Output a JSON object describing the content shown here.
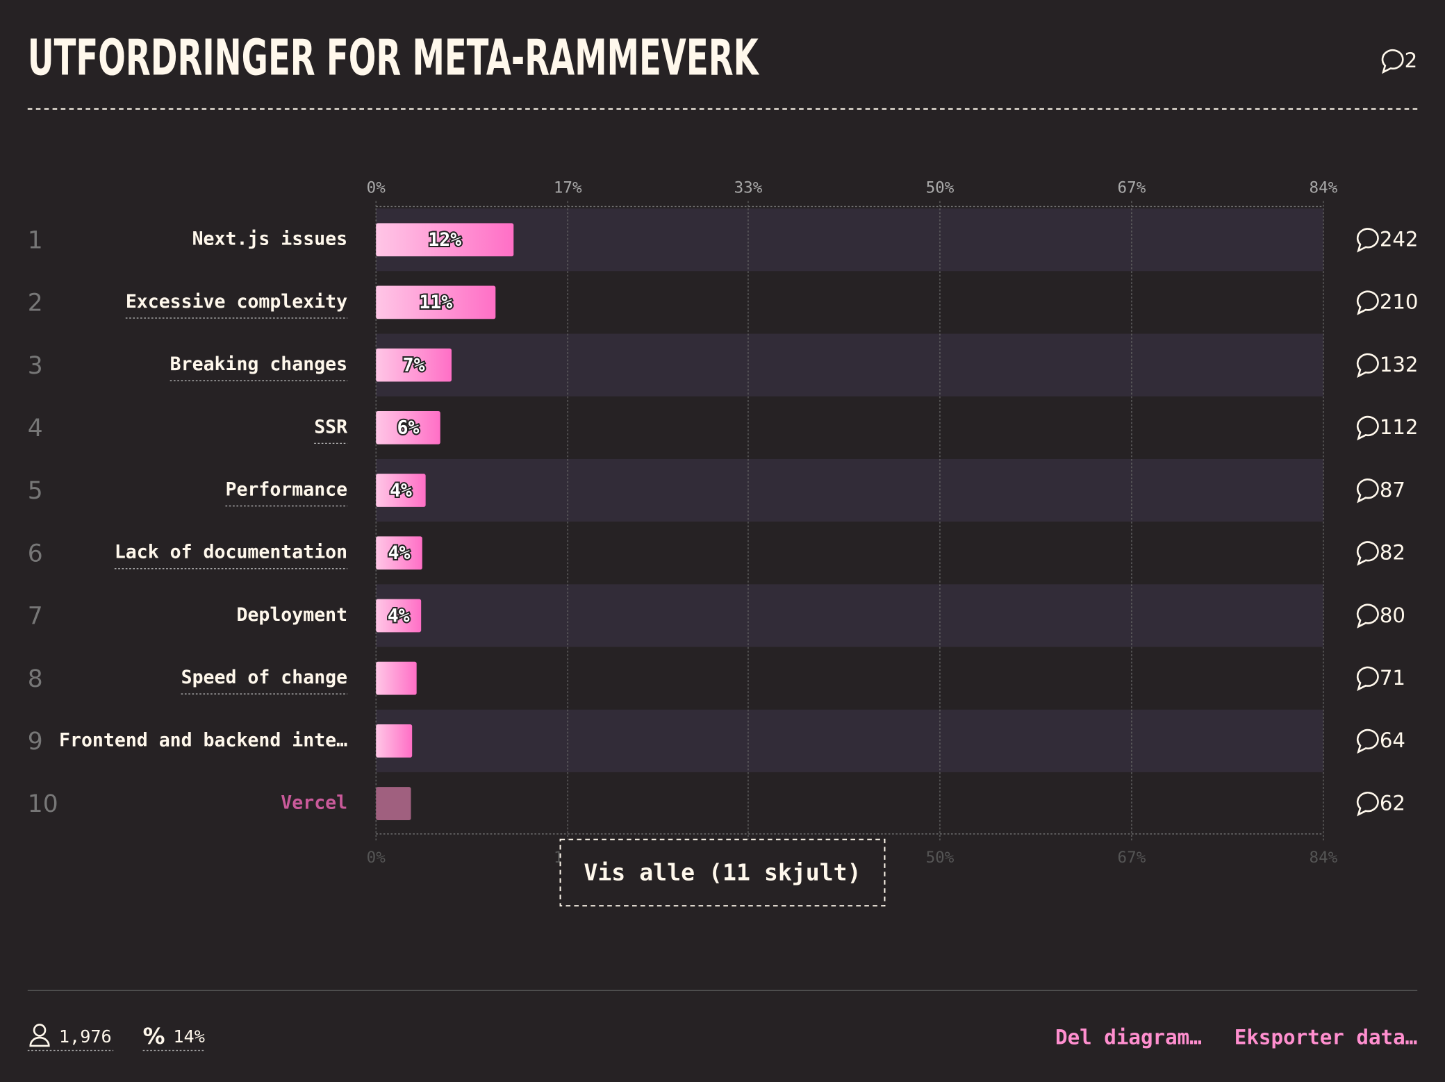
{
  "chart_data": {
    "type": "bar",
    "orientation": "horizontal",
    "title": "UTFORDRINGER FOR META-RAMMEVERK",
    "title_comments": "2",
    "ranks": [
      "1",
      "2",
      "3",
      "4",
      "5",
      "6",
      "7",
      "8",
      "9",
      "10"
    ],
    "categories": [
      "Next.js issues",
      "Excessive complexity",
      "Breaking changes",
      "SSR",
      "Performance",
      "Lack of documentation",
      "Deployment",
      "Speed of change",
      "Frontend and backend inte…",
      "Vercel"
    ],
    "values": [
      12.2,
      10.6,
      6.7,
      5.7,
      4.4,
      4.1,
      4.0,
      3.6,
      3.2,
      3.1
    ],
    "value_labels": [
      "12%",
      "11%",
      "7%",
      "6%",
      "4%",
      "4%",
      "4%",
      null,
      null,
      null
    ],
    "comments": [
      242,
      210,
      132,
      112,
      87,
      82,
      80,
      71,
      64,
      62
    ],
    "color": "#ff8fcf",
    "xlim": [
      0,
      84
    ],
    "xticks": [
      {
        "value": 0,
        "label": "0%"
      },
      {
        "value": 17,
        "label": "17%"
      },
      {
        "value": 33,
        "label": "33%"
      },
      {
        "value": 50,
        "label": "50%"
      },
      {
        "value": 67,
        "label": "67%"
      },
      {
        "value": 84,
        "label": "84%"
      }
    ],
    "grid": true,
    "show_all_button": "Vis alle (11 skjult)",
    "respondents": "1,976",
    "completion": "14%",
    "actions": [
      "Del diagram…",
      "Eksporter data…"
    ]
  }
}
